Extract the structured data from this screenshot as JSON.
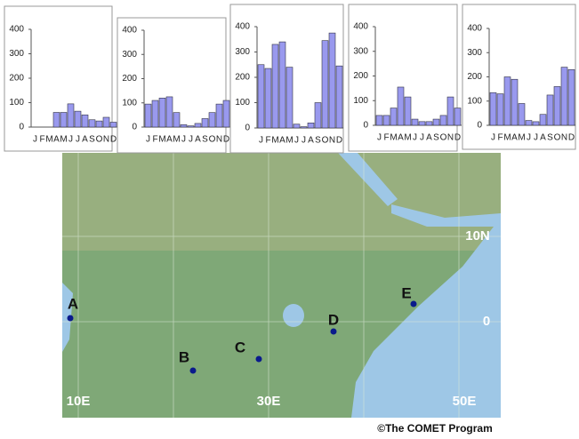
{
  "chart_data": [
    {
      "type": "bar",
      "categories": [
        "J",
        "F",
        "M",
        "A",
        "M",
        "J",
        "J",
        "A",
        "S",
        "O",
        "N",
        "D"
      ],
      "values": [
        0,
        0,
        0,
        60,
        60,
        95,
        65,
        50,
        30,
        25,
        40,
        20
      ],
      "color": "#9999ee",
      "ylim": [
        0,
        400
      ],
      "yticks": [
        0,
        100,
        200,
        300,
        400
      ]
    },
    {
      "type": "bar",
      "categories": [
        "J",
        "F",
        "M",
        "A",
        "M",
        "J",
        "J",
        "A",
        "S",
        "O",
        "N",
        "D"
      ],
      "values": [
        95,
        110,
        120,
        125,
        60,
        10,
        5,
        15,
        35,
        60,
        95,
        110
      ],
      "color": "#9999ee",
      "ylim": [
        0,
        400
      ],
      "yticks": [
        0,
        100,
        200,
        300,
        400
      ]
    },
    {
      "type": "bar",
      "categories": [
        "J",
        "F",
        "M",
        "A",
        "M",
        "J",
        "J",
        "A",
        "S",
        "O",
        "N",
        "D"
      ],
      "values": [
        250,
        235,
        330,
        340,
        240,
        15,
        5,
        20,
        100,
        345,
        375,
        245
      ],
      "color": "#9999ee",
      "ylim": [
        0,
        400
      ],
      "yticks": [
        0,
        100,
        200,
        300,
        400
      ]
    },
    {
      "type": "bar",
      "categories": [
        "J",
        "F",
        "M",
        "A",
        "M",
        "J",
        "J",
        "A",
        "S",
        "O",
        "N",
        "D"
      ],
      "values": [
        40,
        40,
        70,
        155,
        115,
        25,
        15,
        15,
        25,
        40,
        115,
        70
      ],
      "color": "#9999ee",
      "ylim": [
        0,
        400
      ],
      "yticks": [
        0,
        100,
        200,
        300,
        400
      ]
    },
    {
      "type": "bar",
      "categories": [
        "J",
        "F",
        "M",
        "A",
        "M",
        "J",
        "J",
        "A",
        "S",
        "O",
        "N",
        "D"
      ],
      "values": [
        135,
        130,
        200,
        190,
        90,
        20,
        15,
        45,
        125,
        160,
        240,
        230
      ],
      "color": "#9999ee",
      "ylim": [
        0,
        400
      ],
      "yticks": [
        0,
        100,
        200,
        300,
        400
      ]
    }
  ],
  "map": {
    "points": [
      "A",
      "B",
      "C",
      "D",
      "E"
    ],
    "latitudes": [
      "10N",
      "0"
    ],
    "longitudes": [
      "10E",
      "30E",
      "50E"
    ],
    "credit": "©The COMET Program"
  }
}
